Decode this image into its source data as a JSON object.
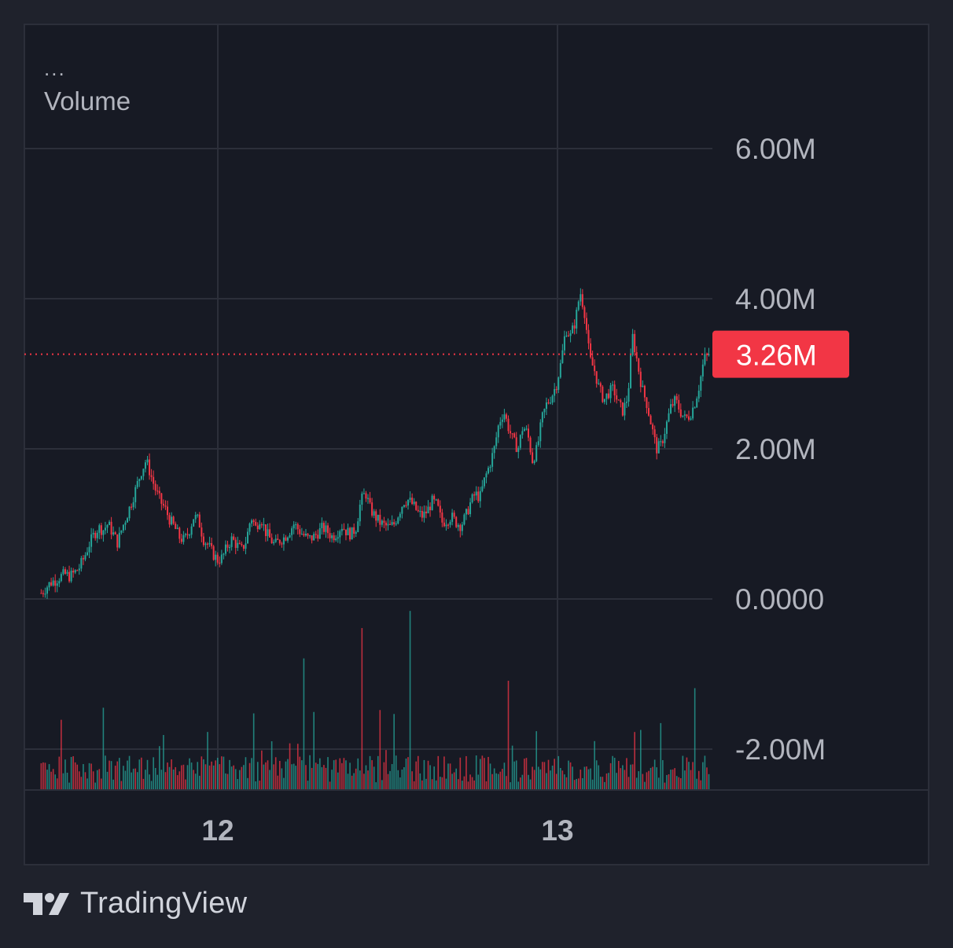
{
  "legend": {
    "more_label": "...",
    "title": "Volume"
  },
  "brand": {
    "name": "TradingView",
    "icon": "tradingview-logo-icon"
  },
  "colors": {
    "background": "#1f222c",
    "pane": "#171a24",
    "grid": "#2c2f3a",
    "up": "#26a69a",
    "down": "#f23645",
    "price_label_bg": "#f23645",
    "axis_text": "#b2b5be",
    "time_text": "#b2b5be"
  },
  "chart_data": {
    "type": "line",
    "title": "Volume",
    "style": "candlestick",
    "ylim": [
      -2650000,
      7700000
    ],
    "y_ticks": [
      {
        "value": 6000000,
        "label": "6.00M"
      },
      {
        "value": 4000000,
        "label": "4.00M"
      },
      {
        "value": 2000000,
        "label": "2.00M"
      },
      {
        "value": 0,
        "label": "0.0000"
      },
      {
        "value": -2000000,
        "label": "-2.00M"
      }
    ],
    "x_ticks": [
      {
        "day": 12,
        "label": "12"
      },
      {
        "day": 13,
        "label": "13"
      }
    ],
    "x_range_days": [
      11.48,
      13.45
    ],
    "last_value": {
      "value": 3260000,
      "label": "3.26M"
    },
    "grid": true,
    "series": [
      {
        "values_millions": [
          0.08,
          0.15,
          0.22,
          0.25,
          0.3,
          0.33,
          0.3,
          0.35,
          0.42,
          0.55,
          0.72,
          0.85,
          0.95,
          0.92,
          1.0,
          0.88,
          0.75,
          0.95,
          1.12,
          1.3,
          1.5,
          1.7,
          1.85,
          1.65,
          1.45,
          1.3,
          1.2,
          1.05,
          0.95,
          0.82,
          0.78,
          0.9,
          1.1,
          1.05,
          0.8,
          0.72,
          0.6,
          0.52,
          0.55,
          0.7,
          0.8,
          0.72,
          0.65,
          0.78,
          1.1,
          0.95,
          1.1,
          0.9,
          0.8,
          0.72,
          0.78,
          0.82,
          0.9,
          1.0,
          0.92,
          0.85,
          0.8,
          0.82,
          0.88,
          0.95,
          0.9,
          0.83,
          0.88,
          0.98,
          0.9,
          0.86,
          0.95,
          1.3,
          1.42,
          1.2,
          1.1,
          1.02,
          0.98,
          0.95,
          1.0,
          1.15,
          1.3,
          1.32,
          1.25,
          1.15,
          1.1,
          1.18,
          1.3,
          1.25,
          1.02,
          1.05,
          1.1,
          1.02,
          0.98,
          1.1,
          1.28,
          1.4,
          1.35,
          1.6,
          1.78,
          2.0,
          2.35,
          2.5,
          2.28,
          2.1,
          2.0,
          2.3,
          2.2,
          1.85,
          2.0,
          2.4,
          2.6,
          2.7,
          2.85,
          3.15,
          3.6,
          3.5,
          3.7,
          4.1,
          3.8,
          3.2,
          3.05,
          2.8,
          2.65,
          2.75,
          2.8,
          2.6,
          2.5,
          2.7,
          3.5,
          3.15,
          2.8,
          2.6,
          2.3,
          2.0,
          2.05,
          2.3,
          2.55,
          2.65,
          2.5,
          2.4,
          2.45,
          2.6,
          2.85,
          3.2,
          3.26
        ]
      }
    ],
    "volume_note": "secondary histogram of bars along the bottom of the pane"
  }
}
